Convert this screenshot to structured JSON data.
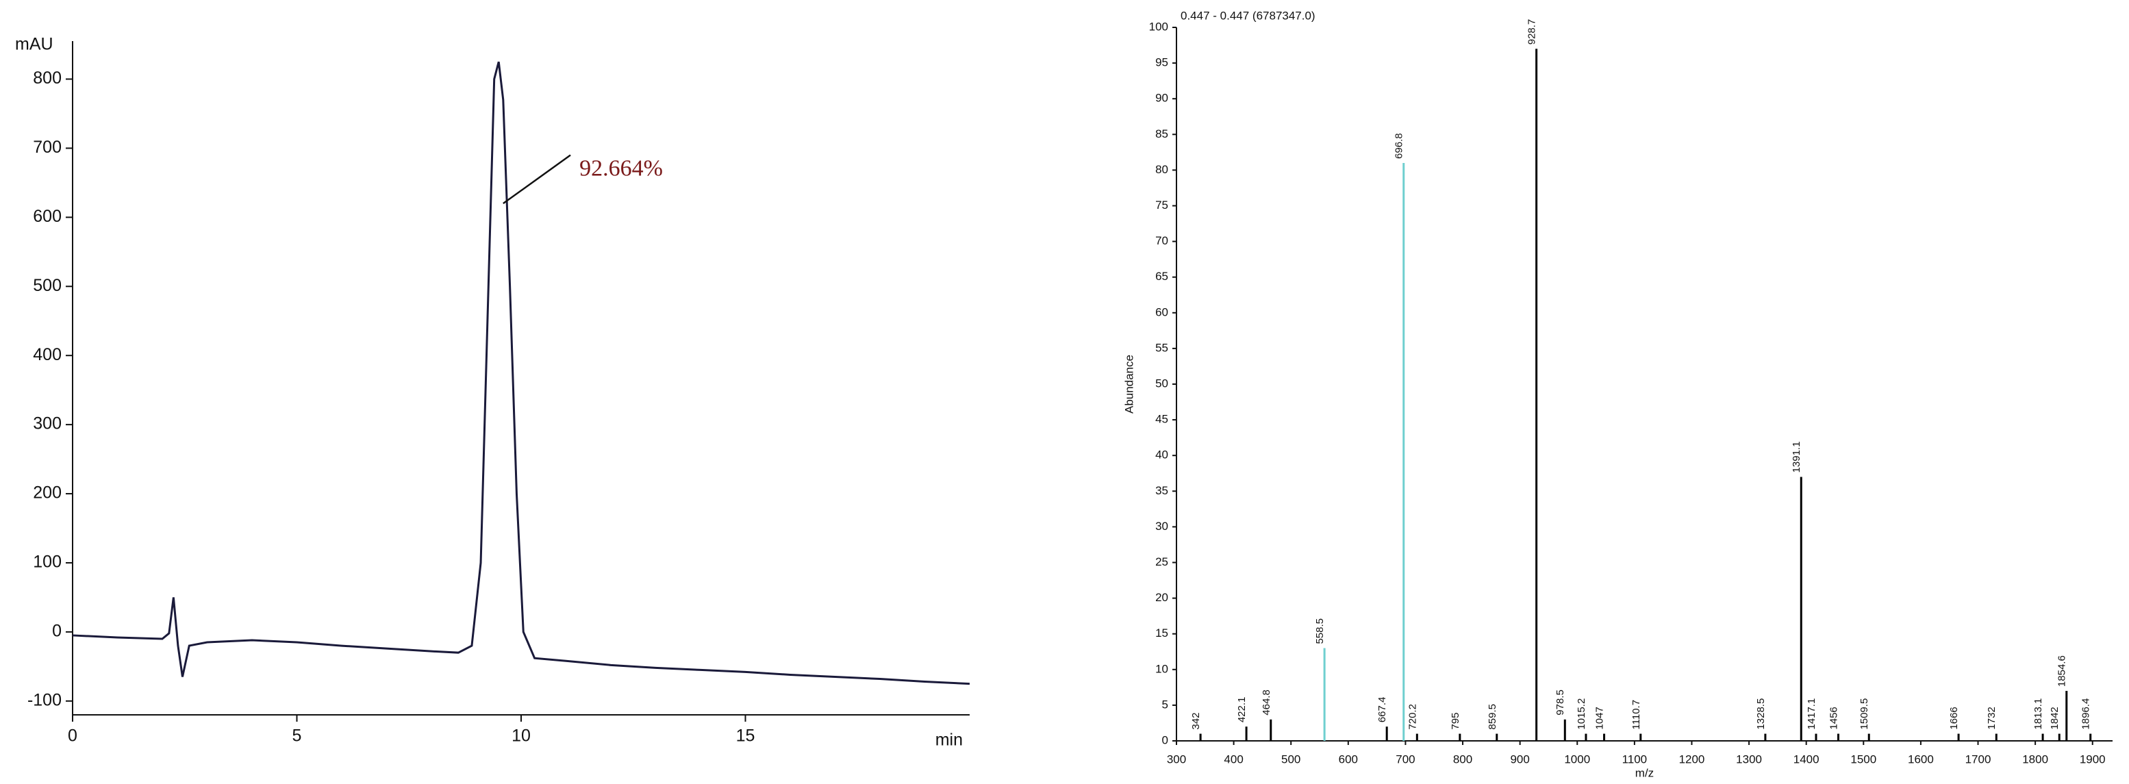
{
  "chart_data": [
    {
      "type": "line",
      "y_label": "mAU",
      "x_label": "min",
      "annotation": "92.664%",
      "x": [
        0,
        1,
        2,
        2.15,
        2.25,
        2.35,
        2.45,
        2.6,
        3,
        4,
        5,
        6,
        7,
        8,
        8.6,
        8.9,
        9.1,
        9.25,
        9.4,
        9.5,
        9.6,
        9.75,
        9.9,
        10.05,
        10.3,
        11,
        12,
        13,
        14,
        15,
        16,
        17,
        18,
        19,
        20
      ],
      "values": [
        -5,
        -8,
        -10,
        -2,
        50,
        -20,
        -65,
        -20,
        -15,
        -12,
        -15,
        -20,
        -24,
        -28,
        -30,
        -20,
        100,
        450,
        800,
        825,
        770,
        500,
        200,
        0,
        -38,
        -42,
        -48,
        -52,
        -55,
        -58,
        -62,
        -65,
        -68,
        -72,
        -75
      ],
      "color": "#1a1a3a",
      "xlim": [
        0,
        20
      ],
      "xticks": [
        0,
        5,
        10,
        15
      ],
      "ylim": [
        -120,
        855
      ],
      "yticks": [
        -100,
        0,
        100,
        200,
        300,
        400,
        500,
        600,
        700,
        800
      ],
      "grid": false
    },
    {
      "type": "stem",
      "title": "0.447 - 0.447 (6787347.0)",
      "y_label": "Abundance",
      "x_label": "m/z",
      "x": [
        342,
        422.1,
        464.8,
        558.5,
        667.4,
        696.8,
        720.2,
        795,
        859.5,
        928.7,
        978.5,
        1015.2,
        1047,
        1110.7,
        1328.5,
        1391.1,
        1417.1,
        1456,
        1509.5,
        1666,
        1732,
        1813.1,
        1842,
        1854.6,
        1896.4
      ],
      "values": [
        1,
        2,
        3,
        13,
        2,
        81,
        1,
        1,
        1,
        97,
        3,
        1,
        1,
        1,
        1,
        37,
        1,
        1,
        1,
        1,
        1,
        1,
        1,
        7,
        1
      ],
      "colors": [
        "#000",
        "#000",
        "#000",
        "#6fcfcf",
        "#000",
        "#6fcfcf",
        "#000",
        "#000",
        "#000",
        "#000",
        "#000",
        "#000",
        "#000",
        "#000",
        "#000",
        "#000",
        "#000",
        "#000",
        "#000",
        "#000",
        "#000",
        "#000",
        "#000",
        "#000",
        "#000"
      ],
      "xlim": [
        300,
        1935
      ],
      "xticks": [
        300,
        400,
        500,
        600,
        700,
        800,
        900,
        1000,
        1100,
        1200,
        1300,
        1400,
        1500,
        1600,
        1700,
        1800,
        1900
      ],
      "ylim": [
        0,
        100
      ],
      "yticks": [
        0,
        5,
        10,
        15,
        20,
        25,
        30,
        35,
        40,
        45,
        50,
        55,
        60,
        65,
        70,
        75,
        80,
        85,
        90,
        95,
        100
      ],
      "grid": false
    }
  ]
}
